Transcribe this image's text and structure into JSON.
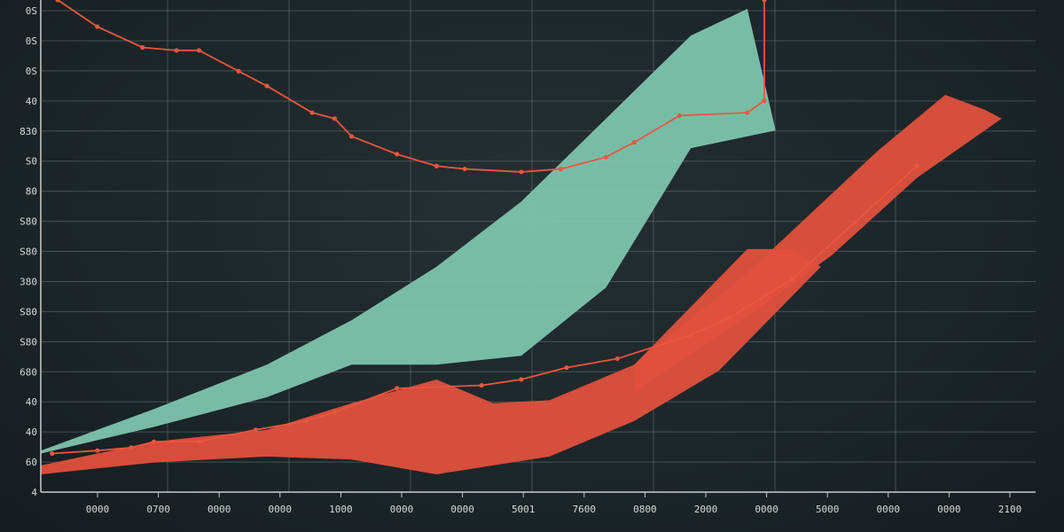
{
  "chart_data": {
    "type": "area",
    "title": "",
    "xlabel": "",
    "ylabel": "",
    "y_tick_labels": [
      "0S",
      "0S",
      "0S",
      "40",
      "830",
      "S0",
      "80",
      "S80",
      "S80",
      "380",
      "S80",
      "S80",
      "680",
      "40",
      "40",
      "60",
      "4"
    ],
    "x_tick_labels": [
      "0000",
      "0700",
      "0000",
      "0000",
      "1000",
      "0000",
      "0000",
      "5001",
      "7600",
      "0800",
      "2000",
      "0000",
      "5000",
      "0000",
      "0000",
      "2100"
    ],
    "grid": true,
    "colors": {
      "background": "#1e2629",
      "teal": "#7ec4ad",
      "red": "#e0503d",
      "line": "#e8573f",
      "grid": "#6b7476"
    },
    "teal_band": {
      "upper": [
        [
          0,
          1.4
        ],
        [
          2,
          2.8
        ],
        [
          4,
          4.3
        ],
        [
          5.5,
          5.8
        ],
        [
          7,
          7.6
        ],
        [
          8.5,
          9.8
        ],
        [
          10,
          12.6
        ],
        [
          11.5,
          15.4
        ],
        [
          12.5,
          16.3
        ]
      ],
      "lower": [
        [
          0,
          1.3
        ],
        [
          2,
          2.2
        ],
        [
          4,
          3.2
        ],
        [
          5.5,
          4.3
        ],
        [
          7,
          4.3
        ],
        [
          8.5,
          4.6
        ],
        [
          10,
          6.9
        ],
        [
          11.5,
          11.6
        ],
        [
          13,
          12.2
        ]
      ]
    },
    "red_band_1": {
      "upper": [
        [
          0,
          0.9
        ],
        [
          2,
          1.7
        ],
        [
          4,
          2.1
        ],
        [
          5.5,
          3.0
        ],
        [
          7,
          3.8
        ],
        [
          8,
          3.0
        ],
        [
          9,
          3.1
        ],
        [
          10.5,
          4.3
        ],
        [
          12.5,
          8.2
        ],
        [
          13.3,
          8.2
        ],
        [
          13.8,
          7.6
        ]
      ],
      "lower": [
        [
          0,
          0.6
        ],
        [
          2,
          1.0
        ],
        [
          4,
          1.2
        ],
        [
          5.5,
          1.1
        ],
        [
          7,
          0.6
        ],
        [
          9,
          1.2
        ],
        [
          10.5,
          2.4
        ],
        [
          12,
          4.1
        ],
        [
          13.8,
          7.6
        ]
      ]
    },
    "red_band_2": {
      "upper": [
        [
          10.5,
          4.3
        ],
        [
          12.5,
          7.4
        ],
        [
          14.8,
          11.5
        ],
        [
          16,
          13.4
        ],
        [
          16.7,
          12.9
        ]
      ],
      "lower": [
        [
          10.5,
          3.4
        ],
        [
          12.5,
          5.9
        ],
        [
          14,
          8.0
        ],
        [
          15.5,
          10.6
        ],
        [
          17,
          12.6
        ]
      ]
    },
    "upper_line": [
      [
        0.3,
        16.6
      ],
      [
        1,
        15.7
      ],
      [
        1.8,
        15.0
      ],
      [
        2.4,
        14.9
      ],
      [
        2.8,
        14.9
      ],
      [
        3.5,
        14.2
      ],
      [
        4,
        13.7
      ],
      [
        4.8,
        12.8
      ],
      [
        5.2,
        12.6
      ],
      [
        5.5,
        12.0
      ],
      [
        6.3,
        11.4
      ],
      [
        7,
        11.0
      ],
      [
        7.5,
        10.9
      ],
      [
        8.5,
        10.8
      ],
      [
        9.2,
        10.9
      ],
      [
        10,
        11.3
      ],
      [
        10.5,
        11.8
      ],
      [
        11.3,
        12.7
      ],
      [
        12.5,
        12.8
      ],
      [
        12.8,
        13.2
      ],
      [
        12.8,
        16.6
      ]
    ],
    "lower_line": [
      [
        0.2,
        1.3
      ],
      [
        1,
        1.4
      ],
      [
        1.6,
        1.5
      ],
      [
        2,
        1.7
      ],
      [
        2.8,
        1.7
      ],
      [
        3.8,
        2.1
      ],
      [
        4.7,
        2.4
      ],
      [
        5.2,
        2.7
      ],
      [
        6.3,
        3.5
      ],
      [
        7.8,
        3.6
      ],
      [
        8.5,
        3.8
      ],
      [
        9.3,
        4.2
      ],
      [
        10.2,
        4.5
      ],
      [
        11.5,
        5.3
      ],
      [
        12.2,
        5.9
      ],
      [
        13.3,
        7.2
      ],
      [
        14.4,
        9.1
      ],
      [
        15.5,
        11.0
      ]
    ],
    "ylim": [
      0,
      16.6
    ],
    "xlim": [
      0,
      17.6
    ]
  }
}
